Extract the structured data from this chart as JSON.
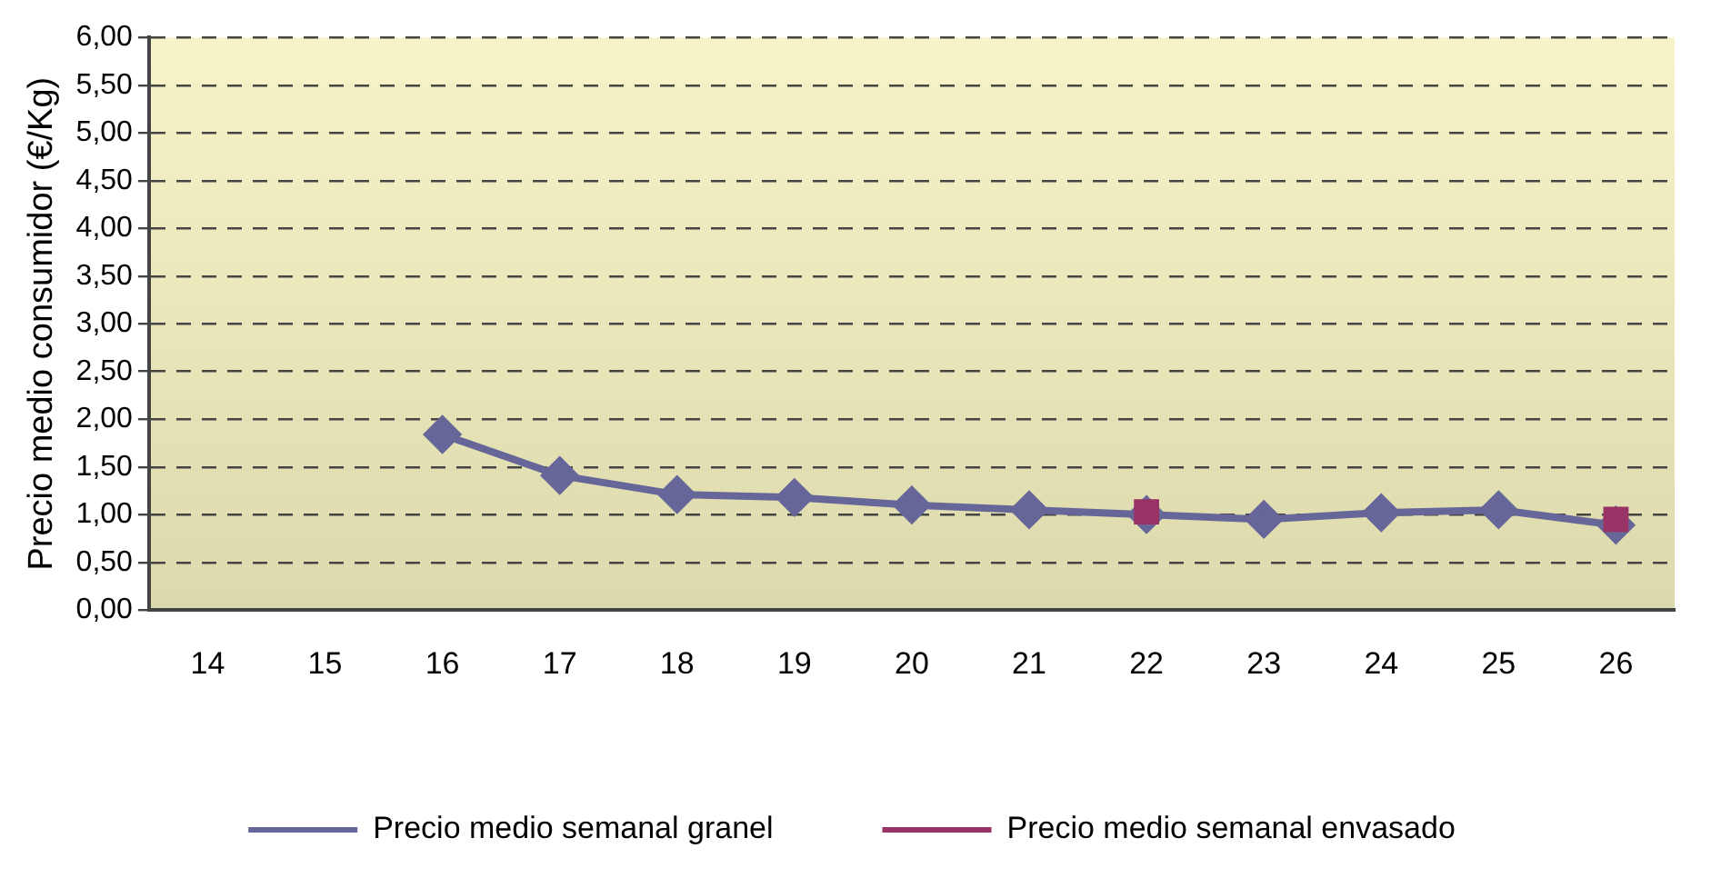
{
  "chart_data": {
    "type": "line",
    "ylabel": "Precio medio consumidor (€/Kg)",
    "categories": [
      "14",
      "15",
      "16",
      "17",
      "18",
      "19",
      "20",
      "21",
      "22",
      "23",
      "24",
      "25",
      "26"
    ],
    "series": [
      {
        "name": "Precio medio semanal granel",
        "color": "#666699",
        "marker": "diamond",
        "values": [
          null,
          null,
          1.84,
          1.41,
          1.21,
          1.18,
          1.1,
          1.05,
          1.0,
          0.95,
          1.02,
          1.05,
          0.89
        ]
      },
      {
        "name": "Precio medio semanal envasado",
        "type": "scatter",
        "color": "#993366",
        "marker": "square",
        "values": [
          null,
          null,
          null,
          null,
          null,
          null,
          null,
          null,
          1.03,
          null,
          null,
          null,
          0.95
        ]
      }
    ],
    "ylim": [
      0,
      6
    ],
    "yticks": [
      {
        "value": 0,
        "label": "0,00"
      },
      {
        "value": 0.5,
        "label": "0,50"
      },
      {
        "value": 1,
        "label": "1,00"
      },
      {
        "value": 1.5,
        "label": "1,50"
      },
      {
        "value": 2,
        "label": "2,00"
      },
      {
        "value": 2.5,
        "label": "2,50"
      },
      {
        "value": 3,
        "label": "3,00"
      },
      {
        "value": 3.5,
        "label": "3,50"
      },
      {
        "value": 4,
        "label": "4,00"
      },
      {
        "value": 4.5,
        "label": "4,50"
      },
      {
        "value": 5,
        "label": "5,00"
      },
      {
        "value": 5.5,
        "label": "5,50"
      },
      {
        "value": 6,
        "label": "6,00"
      }
    ],
    "grid": "y",
    "line_style": "solid",
    "legend": "bottom"
  }
}
